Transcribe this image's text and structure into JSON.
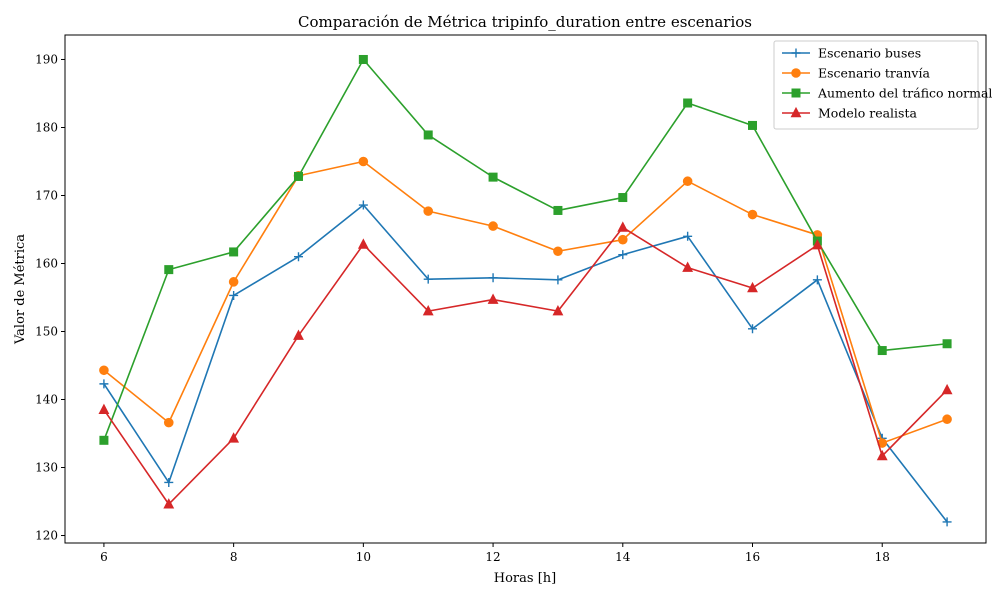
{
  "chart_data": {
    "type": "line",
    "title": "Comparación de Métrica tripinfo_duration entre escenarios",
    "xlabel": "Horas [h]",
    "ylabel": "Valor de Métrica",
    "x": [
      6,
      7,
      8,
      9,
      10,
      11,
      12,
      13,
      14,
      15,
      16,
      17,
      18,
      19
    ],
    "xlim": [
      5.4,
      19.6
    ],
    "ylim": [
      118.9,
      193.6
    ],
    "xticks": [
      6,
      8,
      10,
      12,
      14,
      16,
      18
    ],
    "yticks": [
      120,
      130,
      140,
      150,
      160,
      170,
      180,
      190
    ],
    "grid": false,
    "legend_position": "top-right",
    "series": [
      {
        "name": "Escenario buses",
        "color": "#1f77b4",
        "marker": "plus",
        "values": [
          142.3,
          127.8,
          155.3,
          161.0,
          168.6,
          157.7,
          157.9,
          157.6,
          161.3,
          164.0,
          150.4,
          157.6,
          134.3,
          122.0
        ]
      },
      {
        "name": "Escenario tranvía",
        "color": "#ff7f0e",
        "marker": "circle",
        "values": [
          144.3,
          136.6,
          157.3,
          172.9,
          175.0,
          167.7,
          165.5,
          161.8,
          163.5,
          172.1,
          167.2,
          164.2,
          133.6,
          137.1
        ]
      },
      {
        "name": "Aumento del tráfico normal",
        "color": "#2ca02c",
        "marker": "square",
        "values": [
          134.0,
          159.1,
          161.7,
          172.8,
          190.0,
          178.9,
          172.7,
          167.8,
          169.7,
          183.6,
          180.3,
          163.3,
          147.2,
          148.2
        ]
      },
      {
        "name": "Modelo realista",
        "color": "#d62728",
        "marker": "triangle",
        "values": [
          138.5,
          124.6,
          134.3,
          149.4,
          162.8,
          153.0,
          154.7,
          153.0,
          165.3,
          159.4,
          156.4,
          162.7,
          131.7,
          141.4
        ]
      }
    ]
  }
}
